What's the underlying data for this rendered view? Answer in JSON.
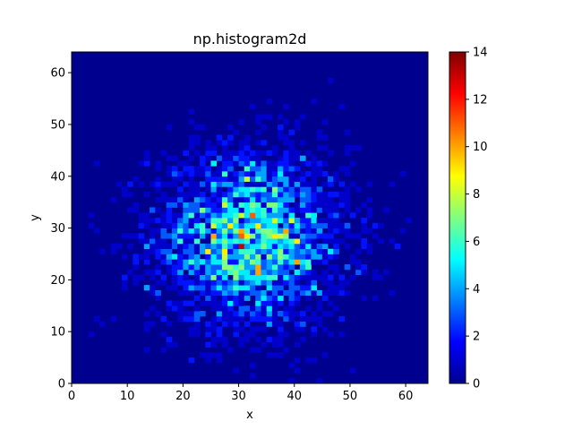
{
  "chart_data": {
    "type": "heatmap",
    "title": "np.histogram2d",
    "xlabel": "x",
    "ylabel": "y",
    "xlim": [
      0,
      64
    ],
    "ylim": [
      0,
      64
    ],
    "xticks": [
      0,
      10,
      20,
      30,
      40,
      50,
      60
    ],
    "yticks": [
      0,
      10,
      20,
      30,
      40,
      50,
      60
    ],
    "bins": [
      64,
      64
    ],
    "center": [
      32,
      28
    ],
    "spread_std": 9,
    "colormap": "jet",
    "colorbar": {
      "min": 0,
      "max": 14,
      "ticks": [
        0,
        2,
        4,
        6,
        8,
        10,
        12,
        14
      ]
    }
  }
}
